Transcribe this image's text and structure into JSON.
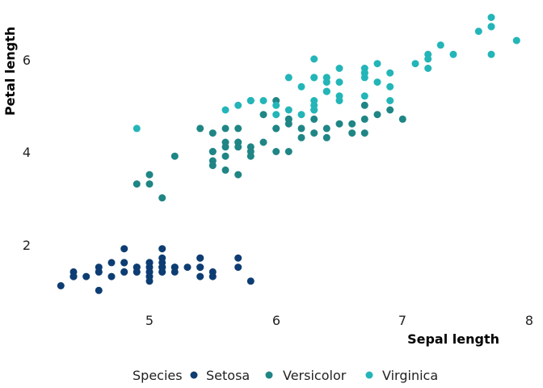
{
  "colors": {
    "setosa": "#0d3d73",
    "versicolor": "#1f8585",
    "virginica": "#23b5b8",
    "text": "#222222"
  },
  "chart_data": {
    "type": "scatter",
    "xlabel": "Sepal length",
    "ylabel": "Petal length",
    "xlim": [
      4.2,
      8.0
    ],
    "ylim": [
      0.7,
      7.2
    ],
    "x_ticks": [
      5,
      6,
      7,
      8
    ],
    "y_ticks": [
      2,
      4,
      6
    ],
    "x_tick_labels": [
      "5",
      "6",
      "7",
      "8"
    ],
    "y_tick_labels": [
      "2",
      "4",
      "6"
    ],
    "grid": false,
    "legend": {
      "position": "bottom",
      "title": "Species",
      "entries": [
        "Setosa",
        "Versicolor",
        "Virginica"
      ]
    },
    "series": [
      {
        "name": "Setosa",
        "color": "#0d3d73",
        "x": [
          5.1,
          4.9,
          4.7,
          4.6,
          5.0,
          5.4,
          4.6,
          5.0,
          4.4,
          4.9,
          5.4,
          4.8,
          4.8,
          4.3,
          5.8,
          5.7,
          5.4,
          5.1,
          5.7,
          5.1,
          5.4,
          5.1,
          4.6,
          5.1,
          4.8,
          5.0,
          5.0,
          5.2,
          5.2,
          4.7,
          4.8,
          5.4,
          5.2,
          5.5,
          4.9,
          5.0,
          5.5,
          4.9,
          4.4,
          5.1,
          5.0,
          4.5,
          4.4,
          5.0,
          5.1,
          4.8,
          5.1,
          4.6,
          5.3,
          5.0
        ],
        "y": [
          1.4,
          1.4,
          1.3,
          1.5,
          1.4,
          1.7,
          1.4,
          1.5,
          1.4,
          1.5,
          1.5,
          1.6,
          1.4,
          1.1,
          1.2,
          1.5,
          1.3,
          1.4,
          1.7,
          1.5,
          1.7,
          1.5,
          1.0,
          1.7,
          1.9,
          1.6,
          1.6,
          1.5,
          1.4,
          1.6,
          1.6,
          1.5,
          1.5,
          1.4,
          1.5,
          1.2,
          1.3,
          1.4,
          1.3,
          1.5,
          1.3,
          1.3,
          1.3,
          1.6,
          1.9,
          1.4,
          1.6,
          1.4,
          1.5,
          1.4
        ]
      },
      {
        "name": "Versicolor",
        "color": "#1f8585",
        "x": [
          7.0,
          6.4,
          6.9,
          5.5,
          6.5,
          5.7,
          6.3,
          4.9,
          6.6,
          5.2,
          5.0,
          5.9,
          6.0,
          6.1,
          5.6,
          6.7,
          5.6,
          5.8,
          6.2,
          5.6,
          5.9,
          6.1,
          6.3,
          6.1,
          6.4,
          6.6,
          6.8,
          6.7,
          6.0,
          5.7,
          5.5,
          5.5,
          5.8,
          6.0,
          5.4,
          6.0,
          6.7,
          6.3,
          5.6,
          5.5,
          5.5,
          6.1,
          5.8,
          5.0,
          5.6,
          5.7,
          5.7,
          6.2,
          5.1,
          5.7
        ],
        "y": [
          4.7,
          4.5,
          4.9,
          4.0,
          4.6,
          4.5,
          4.7,
          3.3,
          4.6,
          3.9,
          3.5,
          4.2,
          4.0,
          4.7,
          3.6,
          4.4,
          4.5,
          4.1,
          4.5,
          3.9,
          4.8,
          4.0,
          4.9,
          4.7,
          4.3,
          4.4,
          4.8,
          5.0,
          4.5,
          3.5,
          3.8,
          3.7,
          3.9,
          5.1,
          4.5,
          4.5,
          4.7,
          4.4,
          4.1,
          4.0,
          4.4,
          4.6,
          4.0,
          3.3,
          4.2,
          4.2,
          4.2,
          4.3,
          3.0,
          4.1
        ]
      },
      {
        "name": "Virginica",
        "color": "#23b5b8",
        "x": [
          6.3,
          5.8,
          7.1,
          6.3,
          6.5,
          7.6,
          4.9,
          7.3,
          6.7,
          7.2,
          6.5,
          6.4,
          6.8,
          5.7,
          5.8,
          6.4,
          6.5,
          7.7,
          7.7,
          6.0,
          6.9,
          5.6,
          7.7,
          6.3,
          6.7,
          7.2,
          6.2,
          6.1,
          6.4,
          7.2,
          7.4,
          7.9,
          6.4,
          6.3,
          6.1,
          7.7,
          6.3,
          6.4,
          6.0,
          6.9,
          6.7,
          6.9,
          5.8,
          6.8,
          6.7,
          6.7,
          6.3,
          6.5,
          6.2,
          5.9
        ],
        "y": [
          6.0,
          5.1,
          5.9,
          5.6,
          5.8,
          6.6,
          4.5,
          6.3,
          5.8,
          6.1,
          5.1,
          5.3,
          5.5,
          5.0,
          5.1,
          5.3,
          5.5,
          6.7,
          6.9,
          5.0,
          5.7,
          4.9,
          6.7,
          4.9,
          5.7,
          6.0,
          4.8,
          4.9,
          5.6,
          5.8,
          6.1,
          6.4,
          5.6,
          5.1,
          5.6,
          6.1,
          5.6,
          5.5,
          4.8,
          5.4,
          5.6,
          5.1,
          5.1,
          5.9,
          5.7,
          5.2,
          5.0,
          5.2,
          5.4,
          5.1
        ]
      }
    ]
  }
}
